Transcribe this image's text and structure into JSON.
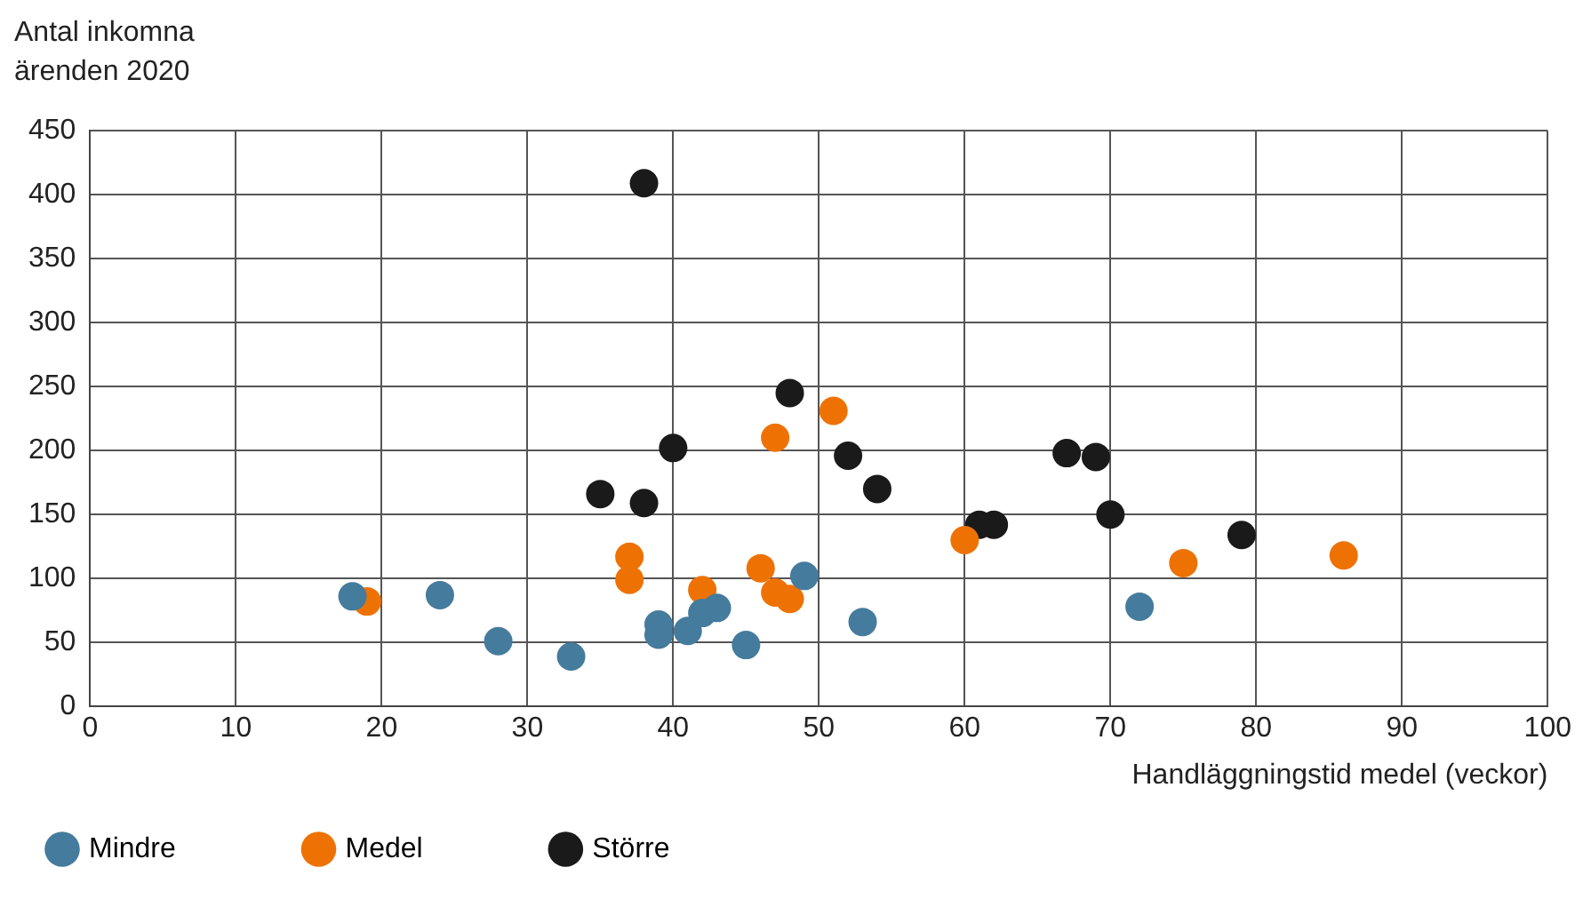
{
  "chart_data": {
    "type": "scatter",
    "ylabel": "Antal inkomna\närenden 2020",
    "xlabel": "Handläggningstid medel (veckor)",
    "xlim": [
      0,
      100
    ],
    "xticks": [
      0,
      10,
      20,
      30,
      40,
      50,
      60,
      70,
      80,
      90,
      100
    ],
    "ylim": [
      0,
      450
    ],
    "yticks": [
      0,
      50,
      100,
      150,
      200,
      250,
      300,
      350,
      400,
      450
    ],
    "grid": true,
    "legend": "bottom left",
    "marker": "circle",
    "series": [
      {
        "name": "Mindre",
        "color": "#457b9d",
        "x": [
          18,
          24,
          28,
          33,
          39,
          39,
          41,
          42,
          43,
          45,
          49,
          53,
          72
        ],
        "values": [
          86,
          87,
          51,
          39,
          64,
          56,
          59,
          73,
          77,
          48,
          102,
          66,
          78
        ]
      },
      {
        "name": "Medel",
        "color": "#ee7203",
        "x": [
          19,
          37,
          37,
          42,
          46,
          47,
          48,
          47,
          51,
          60,
          75,
          86
        ],
        "values": [
          82,
          117,
          99,
          91,
          108,
          89,
          84,
          210,
          231,
          130,
          112,
          118
        ]
      },
      {
        "name": "Större",
        "color": "#1a1a1a",
        "x": [
          38,
          35,
          38,
          40,
          48,
          52,
          54,
          61,
          62,
          67,
          69,
          70,
          79
        ],
        "values": [
          409,
          166,
          159,
          202,
          245,
          196,
          170,
          142,
          142,
          198,
          195,
          150,
          134
        ]
      }
    ]
  }
}
